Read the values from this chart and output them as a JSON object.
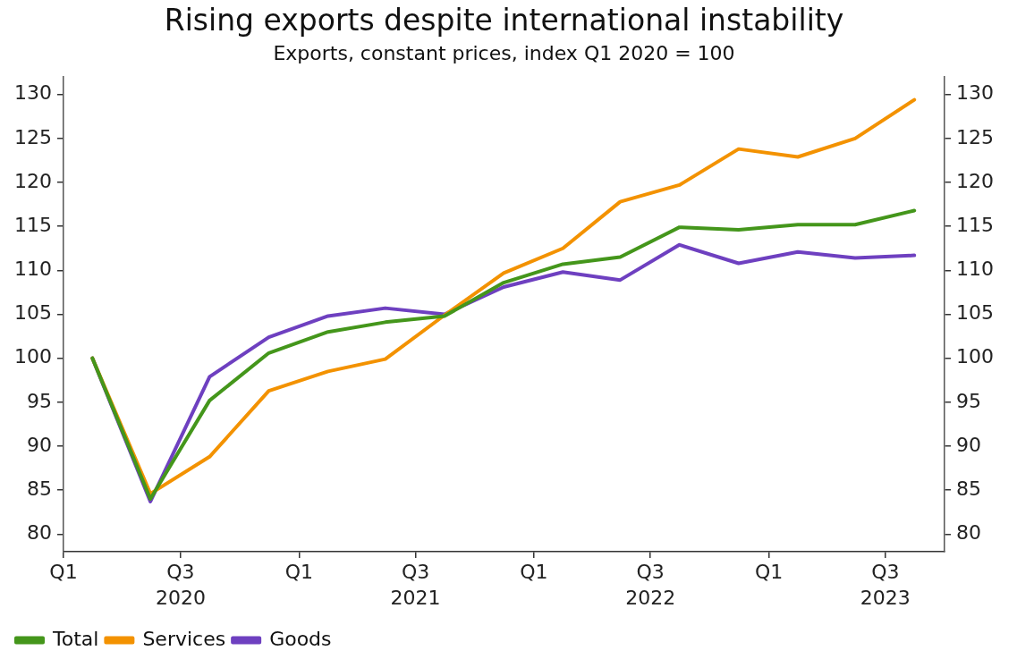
{
  "chart_data": {
    "type": "line",
    "title": "Rising exports despite international instability",
    "subtitle": "Exports, constant prices, index Q1 2020 = 100",
    "x": [
      "2020-02-15",
      "2020-05-15",
      "2020-08-15",
      "2020-11-15",
      "2021-02-15",
      "2021-05-15",
      "2021-08-15",
      "2021-11-15",
      "2022-02-15",
      "2022-05-15",
      "2022-08-15",
      "2022-11-15",
      "2023-02-15",
      "2023-05-15",
      "2023-08-15"
    ],
    "xlim": [
      "2020-01-01",
      "2023-10-01"
    ],
    "xticks": [
      {
        "value": "2020-01-01",
        "label": "Q1"
      },
      {
        "value": "2020-07-01",
        "label": "Q3"
      },
      {
        "value": "2021-01-01",
        "label": "Q1"
      },
      {
        "value": "2021-07-01",
        "label": "Q3"
      },
      {
        "value": "2022-01-01",
        "label": "Q1"
      },
      {
        "value": "2022-07-01",
        "label": "Q3"
      },
      {
        "value": "2023-01-01",
        "label": "Q1"
      },
      {
        "value": "2023-07-01",
        "label": "Q3"
      }
    ],
    "annotations": [
      "2020",
      "2021",
      "2022",
      "2023"
    ],
    "series": [
      {
        "name": "Total",
        "color": "#44961b",
        "values": [
          100,
          84,
          95.2,
          100.6,
          103,
          104.1,
          104.8,
          108.6,
          110.7,
          111.5,
          114.9,
          114.6,
          115.2,
          115.2,
          116.8
        ]
      },
      {
        "name": "Services",
        "color": "#f39200",
        "values": [
          100,
          84.6,
          88.8,
          96.3,
          98.5,
          99.9,
          104.9,
          109.7,
          112.5,
          117.8,
          119.7,
          123.8,
          122.9,
          125,
          129.4
        ]
      },
      {
        "name": "Goods",
        "color": "#6e40c0",
        "values": [
          100,
          83.7,
          97.9,
          102.4,
          104.8,
          105.7,
          105,
          108.1,
          109.8,
          108.9,
          112.9,
          110.8,
          112.1,
          111.4,
          111.7
        ]
      }
    ],
    "ylim": [
      78,
      132
    ],
    "yticks": [
      80,
      85,
      90,
      95,
      100,
      105,
      110,
      115,
      120,
      125,
      130
    ],
    "y2lim": [
      78,
      132
    ],
    "y2ticks": [
      80,
      85,
      90,
      95,
      100,
      105,
      110,
      115,
      120,
      125,
      130
    ],
    "grid": false,
    "legend": "bottom left",
    "marker": "none",
    "line_style": "solid"
  }
}
